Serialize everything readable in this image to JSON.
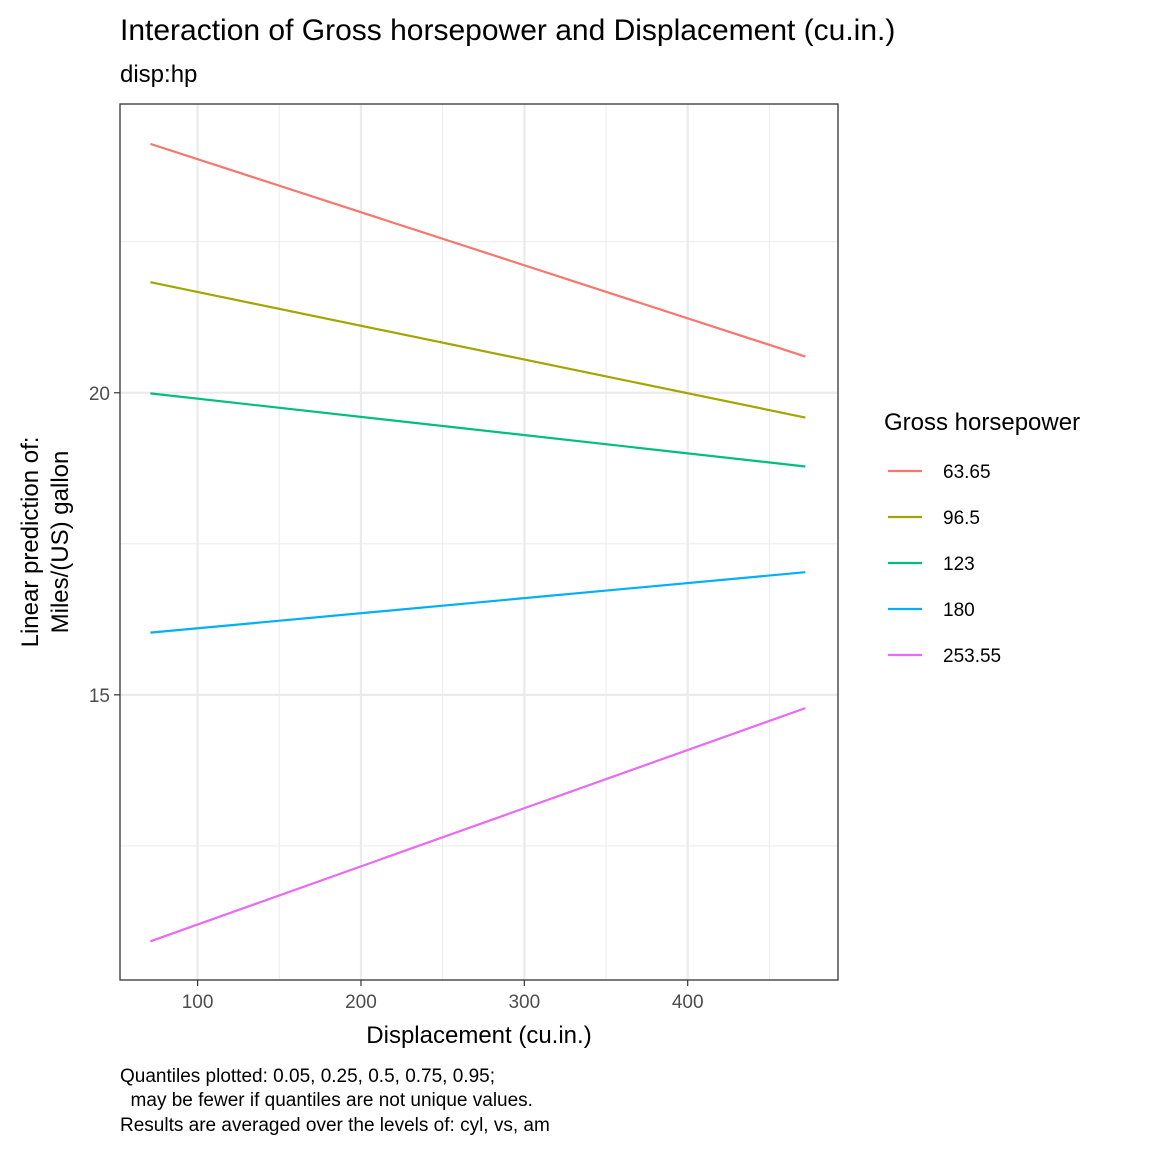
{
  "chart_data": {
    "type": "line",
    "title": "Interaction of Gross horsepower and Displacement (cu.in.)",
    "subtitle": "disp:hp",
    "xlabel": "Displacement (cu.in.)",
    "ylabel_lines": [
      "Linear prediction of:",
      "Miles/(US) gallon"
    ],
    "xlim": [
      52.5,
      492
    ],
    "ylim": [
      10.28,
      24.78
    ],
    "xticks": [
      100,
      200,
      300,
      400
    ],
    "yticks": [
      15,
      20
    ],
    "grid": true,
    "legend_title": "Gross horsepower",
    "legend_position": "right",
    "x": [
      71.1,
      472
    ],
    "series": [
      {
        "name": "63.65",
        "color": "#F8766D",
        "values": [
          24.12,
          20.6
        ]
      },
      {
        "name": "96.5",
        "color": "#A3A500",
        "values": [
          21.83,
          19.59
        ]
      },
      {
        "name": "123",
        "color": "#00BF7D",
        "values": [
          19.99,
          18.78
        ]
      },
      {
        "name": "180",
        "color": "#00B0F6",
        "values": [
          16.03,
          17.03
        ]
      },
      {
        "name": "253.55",
        "color": "#E76BF3",
        "values": [
          10.92,
          14.78
        ]
      }
    ],
    "caption_lines": [
      "Quantiles plotted: 0.05, 0.25, 0.5, 0.75, 0.95;",
      "  may be fewer if quantiles are not unique values.",
      "Results are averaged over the levels of: cyl, vs, am"
    ]
  }
}
